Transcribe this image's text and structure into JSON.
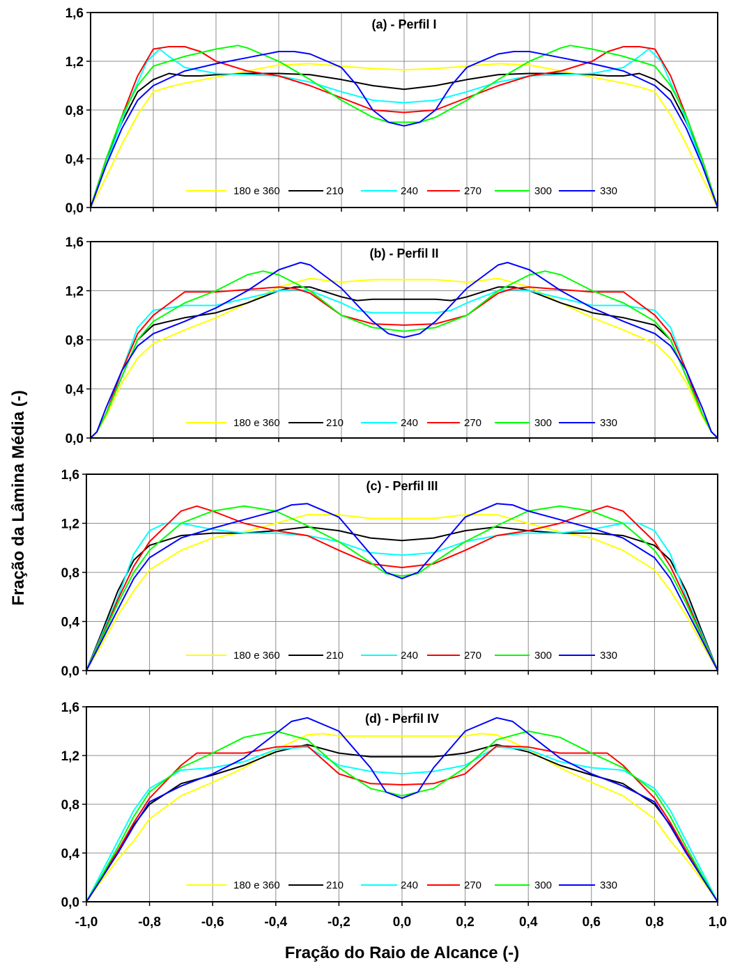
{
  "figure": {
    "ylabel": "Fração da Lâmina Média (-)",
    "xlabel": "Fração do Raio de Alcance (-)"
  },
  "colors": {
    "180 e 360": "#ffff00",
    "210": "#000000",
    "240": "#00ffff",
    "270": "#ff0000",
    "300": "#00ff00",
    "330": "#0000ff"
  },
  "chart_data": [
    {
      "type": "line",
      "title": "(a) - Perfil I",
      "xlim": [
        -1.0,
        1.0
      ],
      "ylim": [
        0.0,
        1.6
      ],
      "xticks": [
        "-1,0",
        "-0,8",
        "-0,6",
        "-0,4",
        "-0,2",
        "0,0",
        "0,2",
        "0,4",
        "0,6",
        "0,8",
        "1,0"
      ],
      "yticks": [
        "0,0",
        "0,4",
        "0,8",
        "1,2",
        "1,6"
      ],
      "grid": true,
      "legend": "bottom-center",
      "symmetric_about_zero": true,
      "series": [
        {
          "name": "180 e 360",
          "x": [
            0,
            0.1,
            0.2,
            0.3,
            0.4,
            0.5,
            0.6,
            0.7,
            0.75,
            0.8,
            0.85,
            0.9,
            0.95,
            1.0
          ],
          "y": [
            1.13,
            1.14,
            1.16,
            1.18,
            1.17,
            1.12,
            1.07,
            1.02,
            0.99,
            0.95,
            0.76,
            0.52,
            0.25,
            0.0
          ]
        },
        {
          "name": "210",
          "x": [
            0,
            0.1,
            0.2,
            0.3,
            0.4,
            0.5,
            0.6,
            0.65,
            0.7,
            0.75,
            0.8,
            0.85,
            0.9,
            0.95,
            1.0
          ],
          "y": [
            0.97,
            1.0,
            1.05,
            1.09,
            1.1,
            1.1,
            1.09,
            1.08,
            1.08,
            1.1,
            1.05,
            0.95,
            0.7,
            0.4,
            0.0
          ]
        },
        {
          "name": "240",
          "x": [
            0,
            0.1,
            0.2,
            0.3,
            0.4,
            0.5,
            0.6,
            0.7,
            0.75,
            0.78,
            0.82,
            0.88,
            0.93,
            1.0
          ],
          "y": [
            0.86,
            0.88,
            0.95,
            1.03,
            1.08,
            1.09,
            1.1,
            1.15,
            1.24,
            1.3,
            1.2,
            0.85,
            0.5,
            0.0
          ]
        },
        {
          "name": "270",
          "x": [
            0,
            0.1,
            0.2,
            0.3,
            0.4,
            0.5,
            0.6,
            0.65,
            0.7,
            0.75,
            0.8,
            0.85,
            0.9,
            0.95,
            1.0
          ],
          "y": [
            0.78,
            0.8,
            0.9,
            1.0,
            1.08,
            1.12,
            1.2,
            1.28,
            1.32,
            1.32,
            1.3,
            1.08,
            0.75,
            0.4,
            0.0
          ]
        },
        {
          "name": "300",
          "x": [
            0,
            0.05,
            0.1,
            0.2,
            0.3,
            0.4,
            0.5,
            0.53,
            0.6,
            0.7,
            0.8,
            0.85,
            0.9,
            0.95,
            1.0
          ],
          "y": [
            0.7,
            0.7,
            0.74,
            0.88,
            1.05,
            1.2,
            1.31,
            1.33,
            1.3,
            1.24,
            1.16,
            1.0,
            0.75,
            0.4,
            0.0
          ]
        },
        {
          "name": "330",
          "x": [
            0,
            0.05,
            0.1,
            0.15,
            0.2,
            0.3,
            0.35,
            0.4,
            0.5,
            0.6,
            0.7,
            0.8,
            0.85,
            0.9,
            0.95,
            1.0
          ],
          "y": [
            0.67,
            0.7,
            0.8,
            1.0,
            1.15,
            1.26,
            1.28,
            1.28,
            1.23,
            1.18,
            1.12,
            1.0,
            0.88,
            0.65,
            0.35,
            0.0
          ]
        }
      ]
    },
    {
      "type": "line",
      "title": "(b) - Perfil II",
      "xlim": [
        -1.0,
        1.0
      ],
      "ylim": [
        0.0,
        1.6
      ],
      "xticks": [
        "-1,0",
        "-0,8",
        "-0,6",
        "-0,4",
        "-0,2",
        "0,0",
        "0,2",
        "0,4",
        "0,6",
        "0,8",
        "1,0"
      ],
      "yticks": [
        "0,0",
        "0,4",
        "0,8",
        "1,2",
        "1,6"
      ],
      "grid": true,
      "legend": "bottom-center",
      "symmetric_about_zero": true,
      "series": [
        {
          "name": "180 e 360",
          "x": [
            0,
            0.1,
            0.2,
            0.3,
            0.4,
            0.5,
            0.6,
            0.7,
            0.8,
            0.85,
            0.9,
            0.95,
            0.98,
            1.0
          ],
          "y": [
            1.29,
            1.29,
            1.27,
            1.3,
            1.23,
            1.1,
            0.98,
            0.88,
            0.77,
            0.65,
            0.45,
            0.18,
            0.05,
            0.0
          ]
        },
        {
          "name": "210",
          "x": [
            0,
            0.1,
            0.15,
            0.2,
            0.3,
            0.35,
            0.4,
            0.5,
            0.6,
            0.7,
            0.8,
            0.85,
            0.9,
            0.95,
            0.98,
            1.0
          ],
          "y": [
            1.13,
            1.13,
            1.12,
            1.15,
            1.23,
            1.23,
            1.2,
            1.1,
            1.02,
            0.98,
            0.92,
            0.8,
            0.5,
            0.2,
            0.05,
            0.0
          ]
        },
        {
          "name": "240",
          "x": [
            0,
            0.1,
            0.15,
            0.2,
            0.3,
            0.35,
            0.4,
            0.5,
            0.6,
            0.7,
            0.8,
            0.85,
            0.9,
            0.95,
            0.98,
            1.0
          ],
          "y": [
            1.02,
            1.02,
            1.04,
            1.1,
            1.2,
            1.21,
            1.2,
            1.14,
            1.08,
            1.08,
            1.04,
            0.9,
            0.55,
            0.2,
            0.05,
            0.0
          ]
        },
        {
          "name": "270",
          "x": [
            0,
            0.1,
            0.2,
            0.3,
            0.35,
            0.4,
            0.5,
            0.6,
            0.65,
            0.7,
            0.8,
            0.85,
            0.9,
            0.95,
            0.98,
            1.0
          ],
          "y": [
            0.92,
            0.93,
            1.0,
            1.18,
            1.22,
            1.23,
            1.21,
            1.19,
            1.19,
            1.19,
            1.0,
            0.85,
            0.55,
            0.2,
            0.05,
            0.0
          ]
        },
        {
          "name": "300",
          "x": [
            0,
            0.1,
            0.2,
            0.3,
            0.4,
            0.45,
            0.5,
            0.6,
            0.7,
            0.8,
            0.85,
            0.9,
            0.95,
            0.98,
            1.0
          ],
          "y": [
            0.87,
            0.9,
            1.0,
            1.2,
            1.33,
            1.36,
            1.33,
            1.2,
            1.1,
            0.95,
            0.8,
            0.5,
            0.2,
            0.05,
            0.0
          ]
        },
        {
          "name": "330",
          "x": [
            0,
            0.05,
            0.1,
            0.2,
            0.3,
            0.33,
            0.4,
            0.5,
            0.6,
            0.7,
            0.8,
            0.85,
            0.9,
            0.95,
            0.98,
            1.0
          ],
          "y": [
            0.82,
            0.85,
            0.95,
            1.22,
            1.41,
            1.43,
            1.37,
            1.2,
            1.06,
            0.95,
            0.85,
            0.75,
            0.55,
            0.25,
            0.05,
            0.0
          ]
        }
      ]
    },
    {
      "type": "line",
      "title": "(c) - Perfil III",
      "xlim": [
        -1.0,
        1.0
      ],
      "ylim": [
        0.0,
        1.6
      ],
      "xticks": [
        "-1,0",
        "-0,8",
        "-0,6",
        "-0,4",
        "-0,2",
        "0,0",
        "0,2",
        "0,4",
        "0,6",
        "0,8",
        "1,0"
      ],
      "yticks": [
        "0,0",
        "0,4",
        "0,8",
        "1,2",
        "1,6"
      ],
      "grid": true,
      "legend": "bottom-center",
      "symmetric_about_zero": true,
      "series": [
        {
          "name": "180 e 360",
          "x": [
            0,
            0.1,
            0.2,
            0.3,
            0.4,
            0.5,
            0.6,
            0.7,
            0.8,
            0.85,
            0.9,
            0.95,
            1.0
          ],
          "y": [
            1.24,
            1.24,
            1.27,
            1.27,
            1.2,
            1.13,
            1.08,
            0.98,
            0.82,
            0.65,
            0.45,
            0.22,
            0.0
          ]
        },
        {
          "name": "210",
          "x": [
            0,
            0.1,
            0.2,
            0.3,
            0.4,
            0.5,
            0.6,
            0.7,
            0.8,
            0.85,
            0.9,
            0.95,
            1.0
          ],
          "y": [
            1.06,
            1.08,
            1.14,
            1.17,
            1.14,
            1.12,
            1.12,
            1.1,
            1.02,
            0.9,
            0.65,
            0.32,
            0.0
          ]
        },
        {
          "name": "240",
          "x": [
            0,
            0.1,
            0.2,
            0.3,
            0.4,
            0.5,
            0.6,
            0.7,
            0.75,
            0.8,
            0.85,
            0.9,
            0.95,
            1.0
          ],
          "y": [
            0.94,
            0.96,
            1.05,
            1.1,
            1.12,
            1.12,
            1.15,
            1.2,
            1.2,
            1.14,
            0.95,
            0.6,
            0.3,
            0.0
          ]
        },
        {
          "name": "270",
          "x": [
            0,
            0.1,
            0.2,
            0.3,
            0.4,
            0.5,
            0.6,
            0.65,
            0.7,
            0.8,
            0.85,
            0.9,
            0.95,
            1.0
          ],
          "y": [
            0.84,
            0.87,
            0.98,
            1.1,
            1.14,
            1.2,
            1.3,
            1.34,
            1.3,
            1.05,
            0.85,
            0.58,
            0.28,
            0.0
          ]
        },
        {
          "name": "300",
          "x": [
            0,
            0.05,
            0.1,
            0.2,
            0.3,
            0.4,
            0.5,
            0.6,
            0.7,
            0.8,
            0.85,
            0.9,
            0.95,
            1.0
          ],
          "y": [
            0.77,
            0.79,
            0.88,
            1.05,
            1.18,
            1.3,
            1.34,
            1.3,
            1.2,
            0.98,
            0.8,
            0.55,
            0.27,
            0.0
          ]
        },
        {
          "name": "330",
          "x": [
            0,
            0.05,
            0.1,
            0.2,
            0.3,
            0.35,
            0.4,
            0.5,
            0.6,
            0.7,
            0.8,
            0.85,
            0.9,
            0.95,
            1.0
          ],
          "y": [
            0.75,
            0.8,
            0.95,
            1.25,
            1.36,
            1.35,
            1.3,
            1.23,
            1.16,
            1.08,
            0.92,
            0.75,
            0.5,
            0.25,
            0.0
          ]
        }
      ]
    },
    {
      "type": "line",
      "title": "(d) - Perfil IV",
      "xlim": [
        -1.0,
        1.0
      ],
      "ylim": [
        0.0,
        1.6
      ],
      "xticks": [
        "-1,0",
        "-0,8",
        "-0,6",
        "-0,4",
        "-0,2",
        "0,0",
        "0,2",
        "0,4",
        "0,6",
        "0,8",
        "1,0"
      ],
      "yticks": [
        "0,0",
        "0,4",
        "0,8",
        "1,2",
        "1,6"
      ],
      "grid": true,
      "legend": "bottom-center",
      "symmetric_about_zero": true,
      "series": [
        {
          "name": "180 e 360",
          "x": [
            0,
            0.1,
            0.2,
            0.25,
            0.3,
            0.4,
            0.5,
            0.6,
            0.7,
            0.8,
            0.85,
            0.9,
            0.95,
            1.0
          ],
          "y": [
            1.36,
            1.36,
            1.36,
            1.38,
            1.37,
            1.25,
            1.1,
            0.98,
            0.87,
            0.68,
            0.5,
            0.35,
            0.18,
            0.0
          ]
        },
        {
          "name": "210",
          "x": [
            0,
            0.1,
            0.2,
            0.3,
            0.4,
            0.5,
            0.6,
            0.7,
            0.8,
            0.85,
            0.9,
            0.95,
            1.0
          ],
          "y": [
            1.19,
            1.19,
            1.22,
            1.29,
            1.23,
            1.12,
            1.04,
            0.97,
            0.8,
            0.63,
            0.42,
            0.21,
            0.0
          ]
        },
        {
          "name": "240",
          "x": [
            0,
            0.1,
            0.2,
            0.3,
            0.4,
            0.5,
            0.6,
            0.7,
            0.8,
            0.85,
            0.9,
            0.95,
            1.0
          ],
          "y": [
            1.05,
            1.07,
            1.12,
            1.27,
            1.25,
            1.15,
            1.1,
            1.08,
            0.93,
            0.75,
            0.5,
            0.25,
            0.0
          ]
        },
        {
          "name": "270",
          "x": [
            0,
            0.1,
            0.2,
            0.3,
            0.4,
            0.5,
            0.6,
            0.65,
            0.7,
            0.8,
            0.85,
            0.9,
            0.95,
            1.0
          ],
          "y": [
            0.96,
            0.97,
            1.05,
            1.28,
            1.27,
            1.22,
            1.22,
            1.22,
            1.12,
            0.85,
            0.65,
            0.42,
            0.2,
            0.0
          ]
        },
        {
          "name": "300",
          "x": [
            0,
            0.1,
            0.2,
            0.3,
            0.4,
            0.5,
            0.6,
            0.7,
            0.8,
            0.85,
            0.9,
            0.95,
            1.0
          ],
          "y": [
            0.87,
            0.93,
            1.1,
            1.33,
            1.4,
            1.35,
            1.22,
            1.1,
            0.9,
            0.7,
            0.45,
            0.22,
            0.0
          ]
        },
        {
          "name": "330",
          "x": [
            0,
            0.05,
            0.1,
            0.2,
            0.3,
            0.35,
            0.4,
            0.5,
            0.6,
            0.7,
            0.8,
            0.85,
            0.9,
            0.95,
            1.0
          ],
          "y": [
            0.85,
            0.9,
            1.1,
            1.4,
            1.51,
            1.48,
            1.38,
            1.18,
            1.05,
            0.95,
            0.82,
            0.62,
            0.4,
            0.2,
            0.0
          ]
        }
      ]
    }
  ]
}
